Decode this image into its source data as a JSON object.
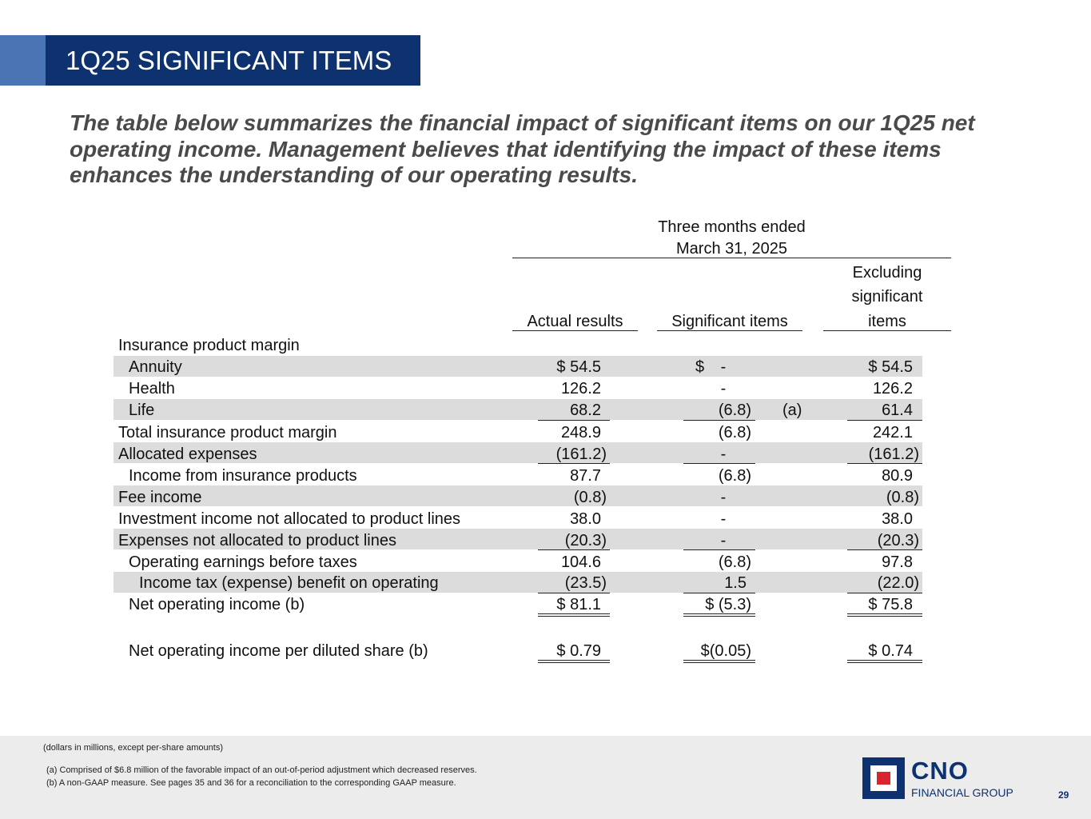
{
  "title": "1Q25 SIGNIFICANT ITEMS",
  "intro": "The table below summarizes the financial impact of significant items on our 1Q25 net operating income. Management believes that identifying the impact of these items enhances the understanding of our operating results.",
  "table": {
    "period_line1": "Three months ended",
    "period_line2": "March 31, 2025",
    "columns": {
      "actual": "Actual results",
      "significant": "Significant items",
      "excluding_line1": "Excluding",
      "excluding_line2": "significant",
      "excluding_line3": "items"
    },
    "section_heading": "Insurance product margin",
    "rows": [
      {
        "label": "Annuity",
        "actual": "$ 54.5",
        "significant": "$",
        "excluding": "$  54.5"
      },
      {
        "label": "Health",
        "actual": "126.2",
        "significant": "",
        "excluding": "126.2"
      },
      {
        "label": "Life",
        "actual": "68.2",
        "significant": "(6.8)",
        "note": "(a)",
        "excluding": "61.4"
      },
      {
        "label": "Total insurance product margin",
        "actual": "248.9",
        "significant": "(6.8)",
        "excluding": "242.1"
      },
      {
        "label": "Allocated expenses",
        "actual": "(161.2)",
        "significant": "",
        "excluding": "(161.2)"
      },
      {
        "label": "Income from insurance products",
        "actual": "87.7",
        "significant": "(6.8)",
        "excluding": "80.9"
      },
      {
        "label": "Fee income",
        "actual": "(0.8)",
        "significant": "",
        "excluding": "(0.8)"
      },
      {
        "label": "Investment income not allocated to product lines",
        "actual": "38.0",
        "significant": "",
        "excluding": "38.0"
      },
      {
        "label": "Expenses not allocated to product lines",
        "actual": "(20.3)",
        "significant": "",
        "excluding": "(20.3)"
      },
      {
        "label": "Operating earnings before taxes",
        "actual": "104.6",
        "significant": "(6.8)",
        "excluding": "97.8"
      },
      {
        "label": "Income tax (expense) benefit on operating",
        "actual": "(23.5)",
        "significant": "1.5",
        "excluding": "(22.0)"
      },
      {
        "label": "Net operating income (b)",
        "actual": "$ 81.1",
        "significant": "$  (5.3)",
        "excluding": "$  75.8"
      },
      {
        "label": "Net operating income per diluted share (b)",
        "actual": "$ 0.79",
        "significant": "$(0.05)",
        "excluding": "$  0.74"
      }
    ],
    "dash": "-"
  },
  "footer": {
    "units": "(dollars in millions, except per-share amounts)",
    "note_a": "(a) Comprised of $6.8 million of the favorable impact of an out-of-period adjustment which decreased reserves.",
    "note_b": "(b) A non-GAAP measure. See pages 35 and 36 for a reconciliation to the corresponding GAAP measure."
  },
  "logo": {
    "name": "CNO",
    "subtitle": "FINANCIAL GROUP"
  },
  "page_number": "29"
}
